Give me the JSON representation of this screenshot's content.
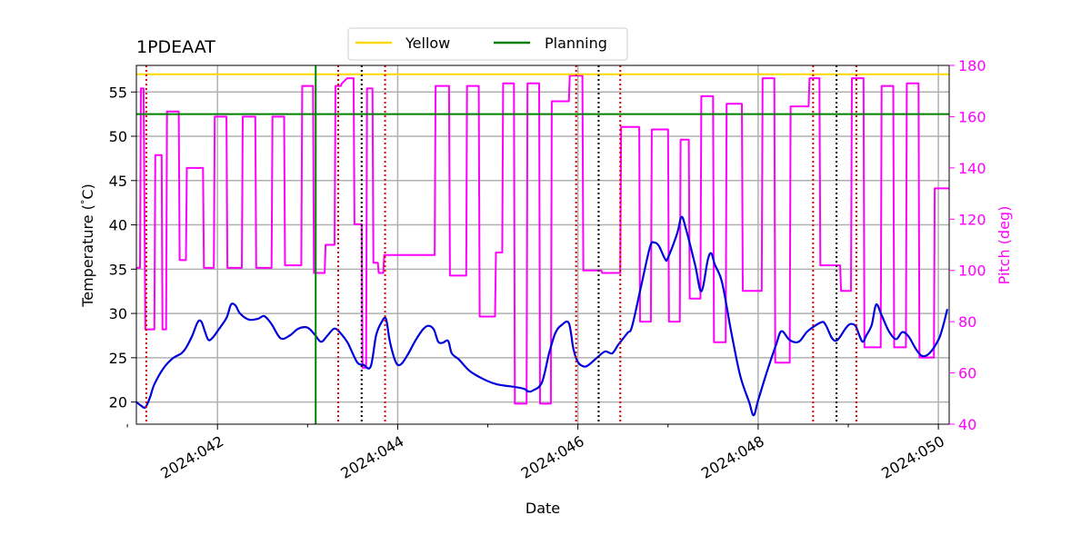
{
  "chart_data": {
    "type": "line",
    "title": "1PDEAAT",
    "xlabel": "Date",
    "ylabel": "Temperature ($^\\circ$C)",
    "ylabel_display": "Temperature (",
    "ylabel_degree": "°",
    "ylabel_unit": "C)",
    "y2label": "Pitch (deg)",
    "xlim": [
      41.1,
      50.12
    ],
    "ylim": [
      17.5,
      58.0
    ],
    "y2lim": [
      40,
      180
    ],
    "x_ticks": [
      {
        "value": 42,
        "label": "2024:042"
      },
      {
        "value": 44,
        "label": "2024:044"
      },
      {
        "value": 46,
        "label": "2024:046"
      },
      {
        "value": 48,
        "label": "2024:048"
      },
      {
        "value": 50,
        "label": "2024:050"
      }
    ],
    "x_minor_ticks": [
      41,
      43,
      45,
      47,
      49
    ],
    "y_ticks": [
      20,
      25,
      30,
      35,
      40,
      45,
      50,
      55
    ],
    "y2_ticks": [
      40,
      60,
      80,
      100,
      120,
      140,
      160,
      180
    ],
    "grid": true,
    "legend": {
      "placement": "top-center",
      "entries": [
        {
          "label": "Yellow",
          "color": "#ffd700"
        },
        {
          "label": "Planning",
          "color": "#008000"
        }
      ]
    },
    "hlines": [
      {
        "name": "Yellow",
        "y": 57.0,
        "color": "#ffd700"
      },
      {
        "name": "Planning",
        "y": 52.5,
        "color": "#008000"
      }
    ],
    "vlines_solid": [
      {
        "x": 43.09,
        "color": "#008000"
      }
    ],
    "vlines_red_dotted": [
      41.21,
      43.34,
      43.86,
      45.98,
      46.47,
      48.61,
      49.09
    ],
    "vlines_black_dotted": [
      43.6,
      46.23,
      48.87
    ],
    "series": [
      {
        "name": "Temperature",
        "axis": "left",
        "color": "#0000dd",
        "points": [
          [
            41.1,
            20.0
          ],
          [
            41.15,
            19.6
          ],
          [
            41.2,
            19.4
          ],
          [
            41.25,
            20.5
          ],
          [
            41.3,
            22.0
          ],
          [
            41.4,
            23.8
          ],
          [
            41.5,
            24.9
          ],
          [
            41.6,
            25.5
          ],
          [
            41.65,
            26.1
          ],
          [
            41.72,
            27.5
          ],
          [
            41.78,
            29.0
          ],
          [
            41.82,
            29.1
          ],
          [
            41.86,
            28.0
          ],
          [
            41.9,
            27.0
          ],
          [
            41.95,
            27.3
          ],
          [
            42.0,
            28.0
          ],
          [
            42.1,
            29.5
          ],
          [
            42.15,
            31.0
          ],
          [
            42.2,
            30.9
          ],
          [
            42.25,
            30.0
          ],
          [
            42.35,
            29.3
          ],
          [
            42.45,
            29.4
          ],
          [
            42.52,
            29.7
          ],
          [
            42.6,
            28.8
          ],
          [
            42.7,
            27.2
          ],
          [
            42.8,
            27.5
          ],
          [
            42.9,
            28.3
          ],
          [
            43.0,
            28.4
          ],
          [
            43.08,
            27.6
          ],
          [
            43.15,
            26.8
          ],
          [
            43.22,
            27.5
          ],
          [
            43.3,
            28.3
          ],
          [
            43.38,
            27.6
          ],
          [
            43.45,
            26.6
          ],
          [
            43.55,
            24.5
          ],
          [
            43.62,
            24.2
          ],
          [
            43.7,
            24.0
          ],
          [
            43.76,
            27.5
          ],
          [
            43.82,
            29.0
          ],
          [
            43.87,
            29.4
          ],
          [
            43.91,
            27.0
          ],
          [
            43.96,
            25.0
          ],
          [
            44.0,
            24.2
          ],
          [
            44.05,
            24.4
          ],
          [
            44.12,
            25.5
          ],
          [
            44.2,
            27.0
          ],
          [
            44.28,
            28.2
          ],
          [
            44.34,
            28.6
          ],
          [
            44.4,
            28.2
          ],
          [
            44.45,
            26.8
          ],
          [
            44.5,
            26.7
          ],
          [
            44.56,
            26.9
          ],
          [
            44.6,
            25.5
          ],
          [
            44.68,
            24.8
          ],
          [
            44.8,
            23.5
          ],
          [
            44.95,
            22.6
          ],
          [
            45.1,
            22.0
          ],
          [
            45.3,
            21.7
          ],
          [
            45.4,
            21.5
          ],
          [
            45.45,
            21.2
          ],
          [
            45.5,
            21.3
          ],
          [
            45.6,
            22.2
          ],
          [
            45.68,
            25.5
          ],
          [
            45.75,
            27.8
          ],
          [
            45.82,
            28.7
          ],
          [
            45.9,
            28.9
          ],
          [
            45.95,
            26.0
          ],
          [
            46.0,
            24.5
          ],
          [
            46.07,
            24.0
          ],
          [
            46.12,
            24.2
          ],
          [
            46.2,
            24.9
          ],
          [
            46.3,
            25.7
          ],
          [
            46.38,
            25.5
          ],
          [
            46.45,
            26.5
          ],
          [
            46.55,
            27.8
          ],
          [
            46.6,
            28.5
          ],
          [
            46.7,
            33.0
          ],
          [
            46.8,
            37.5
          ],
          [
            46.85,
            38.0
          ],
          [
            46.9,
            37.6
          ],
          [
            46.97,
            36.1
          ],
          [
            47.0,
            36.3
          ],
          [
            47.1,
            39.0
          ],
          [
            47.15,
            40.9
          ],
          [
            47.2,
            39.5
          ],
          [
            47.3,
            35.5
          ],
          [
            47.37,
            32.5
          ],
          [
            47.44,
            36.0
          ],
          [
            47.48,
            36.8
          ],
          [
            47.52,
            35.5
          ],
          [
            47.6,
            33.5
          ],
          [
            47.7,
            28.0
          ],
          [
            47.8,
            23.0
          ],
          [
            47.9,
            20.0
          ],
          [
            47.95,
            18.5
          ],
          [
            48.0,
            20.2
          ],
          [
            48.1,
            23.5
          ],
          [
            48.2,
            26.5
          ],
          [
            48.26,
            28.0
          ],
          [
            48.35,
            27.0
          ],
          [
            48.45,
            26.8
          ],
          [
            48.55,
            28.0
          ],
          [
            48.7,
            29.0
          ],
          [
            48.75,
            28.7
          ],
          [
            48.82,
            27.2
          ],
          [
            48.88,
            27.0
          ],
          [
            48.97,
            28.3
          ],
          [
            49.02,
            28.8
          ],
          [
            49.08,
            28.6
          ],
          [
            49.12,
            27.6
          ],
          [
            49.16,
            26.8
          ],
          [
            49.2,
            27.5
          ],
          [
            49.26,
            28.7
          ],
          [
            49.31,
            31.0
          ],
          [
            49.37,
            29.8
          ],
          [
            49.45,
            28.0
          ],
          [
            49.53,
            27.1
          ],
          [
            49.6,
            27.9
          ],
          [
            49.67,
            27.4
          ],
          [
            49.75,
            26.0
          ],
          [
            49.82,
            25.2
          ],
          [
            49.9,
            25.5
          ],
          [
            50.0,
            27.0
          ],
          [
            50.05,
            28.5
          ],
          [
            50.1,
            30.5
          ]
        ]
      },
      {
        "name": "Pitch",
        "axis": "right",
        "color": "#ff00ff",
        "points": [
          [
            41.1,
            101
          ],
          [
            41.14,
            101
          ],
          [
            41.15,
            171
          ],
          [
            41.18,
            171
          ],
          [
            41.2,
            77
          ],
          [
            41.3,
            77
          ],
          [
            41.31,
            145
          ],
          [
            41.38,
            145
          ],
          [
            41.39,
            77
          ],
          [
            41.43,
            77
          ],
          [
            41.44,
            162
          ],
          [
            41.57,
            162
          ],
          [
            41.58,
            104
          ],
          [
            41.65,
            104
          ],
          [
            41.66,
            140
          ],
          [
            41.84,
            140
          ],
          [
            41.85,
            101
          ],
          [
            41.96,
            101
          ],
          [
            41.97,
            160
          ],
          [
            42.1,
            160
          ],
          [
            42.11,
            101
          ],
          [
            42.27,
            101
          ],
          [
            42.28,
            160
          ],
          [
            42.42,
            160
          ],
          [
            42.43,
            101
          ],
          [
            42.6,
            101
          ],
          [
            42.61,
            160
          ],
          [
            42.74,
            160
          ],
          [
            42.75,
            102
          ],
          [
            42.93,
            102
          ],
          [
            42.94,
            172
          ],
          [
            43.06,
            172
          ],
          [
            43.07,
            99
          ],
          [
            43.19,
            99
          ],
          [
            43.2,
            110
          ],
          [
            43.3,
            110
          ],
          [
            43.31,
            172
          ],
          [
            43.37,
            172
          ],
          [
            43.38,
            173
          ],
          [
            43.44,
            175
          ],
          [
            43.51,
            175
          ],
          [
            43.52,
            118
          ],
          [
            43.6,
            118
          ],
          [
            43.61,
            62
          ],
          [
            43.65,
            62
          ],
          [
            43.66,
            171
          ],
          [
            43.72,
            171
          ],
          [
            43.73,
            103
          ],
          [
            43.78,
            103
          ],
          [
            43.79,
            99
          ],
          [
            43.84,
            99
          ],
          [
            43.85,
            106
          ],
          [
            44.41,
            106
          ],
          [
            44.42,
            172
          ],
          [
            44.57,
            172
          ],
          [
            44.58,
            98
          ],
          [
            44.76,
            98
          ],
          [
            44.77,
            172
          ],
          [
            44.9,
            172
          ],
          [
            44.91,
            82
          ],
          [
            45.08,
            82
          ],
          [
            45.09,
            107
          ],
          [
            45.16,
            107
          ],
          [
            45.17,
            173
          ],
          [
            45.29,
            173
          ],
          [
            45.3,
            48
          ],
          [
            45.43,
            48
          ],
          [
            45.44,
            173
          ],
          [
            45.57,
            173
          ],
          [
            45.58,
            48
          ],
          [
            45.7,
            48
          ],
          [
            45.71,
            166
          ],
          [
            45.9,
            166
          ],
          [
            45.91,
            176
          ],
          [
            45.98,
            176
          ],
          [
            46.05,
            176
          ],
          [
            46.06,
            100
          ],
          [
            46.15,
            100
          ],
          [
            46.26,
            100
          ],
          [
            46.27,
            99
          ],
          [
            46.47,
            99
          ],
          [
            46.48,
            156
          ],
          [
            46.68,
            156
          ],
          [
            46.69,
            80
          ],
          [
            46.81,
            80
          ],
          [
            46.82,
            155
          ],
          [
            47.0,
            155
          ],
          [
            47.01,
            80
          ],
          [
            47.13,
            80
          ],
          [
            47.14,
            151
          ],
          [
            47.23,
            151
          ],
          [
            47.24,
            89
          ],
          [
            47.36,
            89
          ],
          [
            47.37,
            168
          ],
          [
            47.5,
            168
          ],
          [
            47.51,
            72
          ],
          [
            47.64,
            72
          ],
          [
            47.65,
            165
          ],
          [
            47.82,
            165
          ],
          [
            47.83,
            92
          ],
          [
            48.04,
            92
          ],
          [
            48.05,
            175
          ],
          [
            48.18,
            175
          ],
          [
            48.19,
            64
          ],
          [
            48.35,
            64
          ],
          [
            48.36,
            164
          ],
          [
            48.56,
            164
          ],
          [
            48.57,
            175
          ],
          [
            48.68,
            175
          ],
          [
            48.69,
            102
          ],
          [
            48.91,
            102
          ],
          [
            48.92,
            92
          ],
          [
            49.03,
            92
          ],
          [
            49.04,
            175
          ],
          [
            49.17,
            175
          ],
          [
            49.18,
            70
          ],
          [
            49.36,
            70
          ],
          [
            49.37,
            172
          ],
          [
            49.5,
            172
          ],
          [
            49.51,
            70
          ],
          [
            49.64,
            70
          ],
          [
            49.65,
            173
          ],
          [
            49.78,
            173
          ],
          [
            49.79,
            66
          ],
          [
            49.95,
            66
          ],
          [
            49.96,
            132
          ],
          [
            50.12,
            132
          ]
        ]
      }
    ]
  }
}
